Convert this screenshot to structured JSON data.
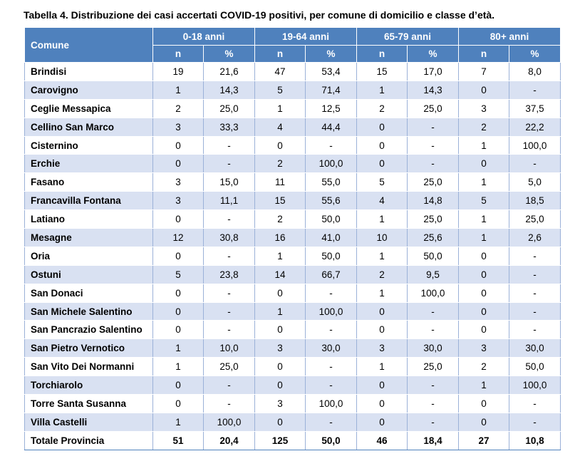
{
  "caption": "Tabella 4. Distribuzione dei casi accertati COVID-19 positivi, per comune di domicilio e classe d’età.",
  "header": {
    "comune": "Comune",
    "groups": [
      "0-18 anni",
      "19-64 anni",
      "65-79 anni",
      "80+ anni"
    ],
    "sub": [
      "n",
      "%",
      "n",
      "%",
      "n",
      "%",
      "n",
      "%"
    ]
  },
  "colors": {
    "header_bg": "#4f81bd",
    "stripe": "#d9e1f2"
  },
  "rows": [
    {
      "name": "Brindisi",
      "v": [
        "19",
        "21,6",
        "47",
        "53,4",
        "15",
        "17,0",
        "7",
        "8,0"
      ]
    },
    {
      "name": "Carovigno",
      "v": [
        "1",
        "14,3",
        "5",
        "71,4",
        "1",
        "14,3",
        "0",
        "-"
      ]
    },
    {
      "name": "Ceglie Messapica",
      "v": [
        "2",
        "25,0",
        "1",
        "12,5",
        "2",
        "25,0",
        "3",
        "37,5"
      ]
    },
    {
      "name": "Cellino San Marco",
      "v": [
        "3",
        "33,3",
        "4",
        "44,4",
        "0",
        "-",
        "2",
        "22,2"
      ]
    },
    {
      "name": "Cisternino",
      "v": [
        "0",
        "-",
        "0",
        "-",
        "0",
        "-",
        "1",
        "100,0"
      ]
    },
    {
      "name": "Erchie",
      "v": [
        "0",
        "-",
        "2",
        "100,0",
        "0",
        "-",
        "0",
        "-"
      ]
    },
    {
      "name": "Fasano",
      "v": [
        "3",
        "15,0",
        "11",
        "55,0",
        "5",
        "25,0",
        "1",
        "5,0"
      ]
    },
    {
      "name": "Francavilla Fontana",
      "v": [
        "3",
        "11,1",
        "15",
        "55,6",
        "4",
        "14,8",
        "5",
        "18,5"
      ]
    },
    {
      "name": "Latiano",
      "v": [
        "0",
        "-",
        "2",
        "50,0",
        "1",
        "25,0",
        "1",
        "25,0"
      ]
    },
    {
      "name": "Mesagne",
      "v": [
        "12",
        "30,8",
        "16",
        "41,0",
        "10",
        "25,6",
        "1",
        "2,6"
      ]
    },
    {
      "name": "Oria",
      "v": [
        "0",
        "-",
        "1",
        "50,0",
        "1",
        "50,0",
        "0",
        "-"
      ]
    },
    {
      "name": "Ostuni",
      "v": [
        "5",
        "23,8",
        "14",
        "66,7",
        "2",
        "9,5",
        "0",
        "-"
      ]
    },
    {
      "name": "San Donaci",
      "v": [
        "0",
        "-",
        "0",
        "-",
        "1",
        "100,0",
        "0",
        "-"
      ]
    },
    {
      "name": "San Michele Salentino",
      "v": [
        "0",
        "-",
        "1",
        "100,0",
        "0",
        "-",
        "0",
        "-"
      ]
    },
    {
      "name": "San Pancrazio Salentino",
      "v": [
        "0",
        "-",
        "0",
        "-",
        "0",
        "-",
        "0",
        "-"
      ]
    },
    {
      "name": "San Pietro Vernotico",
      "v": [
        "1",
        "10,0",
        "3",
        "30,0",
        "3",
        "30,0",
        "3",
        "30,0"
      ]
    },
    {
      "name": "San Vito Dei Normanni",
      "v": [
        "1",
        "25,0",
        "0",
        "-",
        "1",
        "25,0",
        "2",
        "50,0"
      ]
    },
    {
      "name": "Torchiarolo",
      "v": [
        "0",
        "-",
        "0",
        "-",
        "0",
        "-",
        "1",
        "100,0"
      ]
    },
    {
      "name": "Torre Santa Susanna",
      "v": [
        "0",
        "-",
        "3",
        "100,0",
        "0",
        "-",
        "0",
        "-"
      ]
    },
    {
      "name": "Villa Castelli",
      "v": [
        "1",
        "100,0",
        "0",
        "-",
        "0",
        "-",
        "0",
        "-"
      ]
    }
  ],
  "total": {
    "name": "Totale Provincia",
    "v": [
      "51",
      "20,4",
      "125",
      "50,0",
      "46",
      "18,4",
      "27",
      "10,8"
    ]
  }
}
